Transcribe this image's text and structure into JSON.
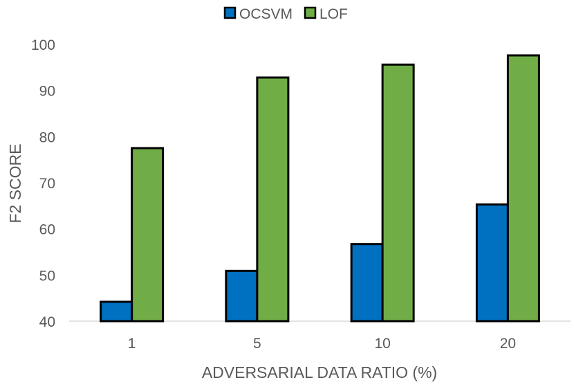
{
  "chart_data": {
    "type": "bar",
    "title": "",
    "xlabel": "ADVERSARIAL DATA RATIO (%)",
    "ylabel": "F2 SCORE",
    "categories": [
      "1",
      "5",
      "10",
      "20"
    ],
    "series": [
      {
        "name": "OCSVM",
        "color": "#0070C0",
        "values": [
          44.2,
          50.9,
          56.7,
          65.3
        ]
      },
      {
        "name": "LOF",
        "color": "#70AD47",
        "values": [
          77.5,
          92.8,
          95.6,
          97.6
        ]
      }
    ],
    "ylim": [
      40,
      100
    ],
    "yticks": [
      40,
      50,
      60,
      70,
      80,
      90,
      100
    ],
    "grid": false,
    "legend_position": "top"
  }
}
